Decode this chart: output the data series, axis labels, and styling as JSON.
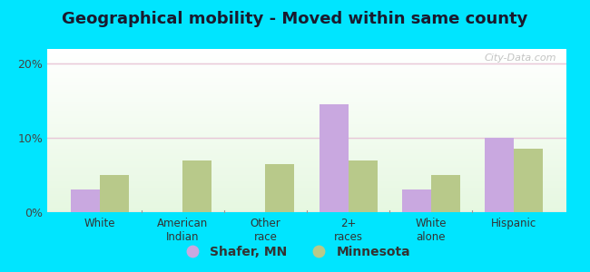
{
  "title": "Geographical mobility - Moved within same county",
  "categories": [
    "White",
    "American\nIndian",
    "Other\nrace",
    "2+\nraces",
    "White\nalone",
    "Hispanic"
  ],
  "shafer_values": [
    3.0,
    0,
    0,
    14.5,
    3.0,
    10.0
  ],
  "mn_values": [
    5.0,
    7.0,
    6.5,
    7.0,
    5.0,
    8.5
  ],
  "shafer_color": "#c9a8e0",
  "mn_color": "#b8c98a",
  "background_outer": "#00e5ff",
  "ylim": [
    0,
    22
  ],
  "yticks": [
    0,
    10,
    20
  ],
  "ytick_labels": [
    "0%",
    "10%",
    "20%"
  ],
  "legend_shafer": "Shafer, MN",
  "legend_mn": "Minnesota",
  "bar_width": 0.35,
  "title_fontsize": 13,
  "watermark": "City-Data.com",
  "grid_color": "#e8c8d8"
}
